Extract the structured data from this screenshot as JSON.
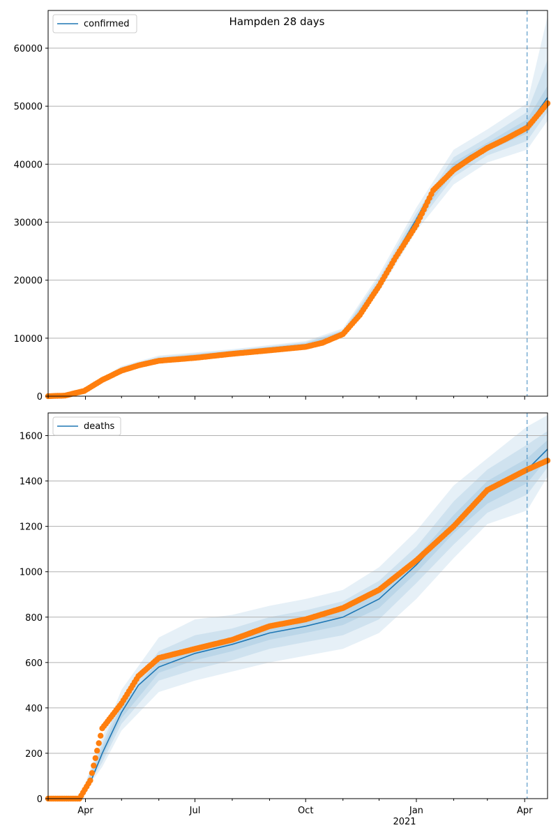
{
  "figure_title": "Hampden 28 days",
  "colors": {
    "model_line": "#1f77b4",
    "observed_points": "#ff7f0e",
    "band": "#1f77b4",
    "grid": "#b0b0b0",
    "forecast_marker": "#1f77b4"
  },
  "x_axis": {
    "tick_labels": [
      "Apr",
      "Jul",
      "Oct",
      "Jan",
      "Apr"
    ],
    "year_label": "2021"
  },
  "chart_data": [
    {
      "type": "line",
      "legend": "confirmed",
      "legend_position": "upper-left",
      "grid": "horizontal",
      "x_range": [
        "2020-03-01",
        "2021-04-20"
      ],
      "forecast_start": "2021-04-03",
      "ylim": [
        0,
        66500
      ],
      "yticks": [
        0,
        10000,
        20000,
        30000,
        40000,
        50000,
        60000
      ],
      "series": [
        {
          "name": "confirmed",
          "style": "model-line",
          "x": [
            "2020-03-01",
            "2020-03-15",
            "2020-03-31",
            "2020-04-15",
            "2020-05-01",
            "2020-05-15",
            "2020-06-01",
            "2020-07-01",
            "2020-08-01",
            "2020-09-01",
            "2020-10-01",
            "2020-10-15",
            "2020-11-01",
            "2020-11-15",
            "2020-12-01",
            "2020-12-15",
            "2021-01-01",
            "2021-01-15",
            "2021-02-01",
            "2021-02-15",
            "2021-03-01",
            "2021-03-15",
            "2021-04-03",
            "2021-04-20"
          ],
          "values": [
            0,
            100,
            1000,
            3000,
            4600,
            5600,
            6400,
            6900,
            7600,
            8300,
            8900,
            9500,
            11000,
            14500,
            19500,
            24500,
            30500,
            36000,
            39500,
            41500,
            43000,
            44500,
            46500,
            51500
          ]
        },
        {
          "name": "observed",
          "style": "points",
          "x": [
            "2020-03-01",
            "2020-03-15",
            "2020-03-31",
            "2020-04-15",
            "2020-05-01",
            "2020-05-15",
            "2020-06-01",
            "2020-07-01",
            "2020-08-01",
            "2020-09-01",
            "2020-10-01",
            "2020-10-15",
            "2020-11-01",
            "2020-11-15",
            "2020-12-01",
            "2020-12-15",
            "2021-01-01",
            "2021-01-15",
            "2021-02-01",
            "2021-02-15",
            "2021-03-01",
            "2021-03-15",
            "2021-04-03",
            "2021-04-20"
          ],
          "values": [
            0,
            100,
            900,
            2800,
            4400,
            5300,
            6100,
            6600,
            7300,
            7900,
            8500,
            9200,
            10700,
            14000,
            19000,
            24000,
            29500,
            35500,
            39000,
            41000,
            42800,
            44200,
            46300,
            50500
          ]
        }
      ],
      "bands": [
        {
          "x": [
            "2020-03-01",
            "2020-03-31",
            "2020-05-01",
            "2020-06-01",
            "2020-08-01",
            "2020-10-01",
            "2020-11-01",
            "2020-12-01",
            "2021-01-01",
            "2021-02-01",
            "2021-03-01",
            "2021-04-03",
            "2021-04-20"
          ],
          "low": [
            0,
            700,
            3900,
            5800,
            7100,
            8300,
            10300,
            18000,
            28500,
            36500,
            40300,
            42500,
            47500
          ],
          "high": [
            0,
            1300,
            5200,
            7000,
            8100,
            9500,
            11700,
            21000,
            32500,
            42500,
            46000,
            50500,
            65500
          ]
        },
        {
          "x": [
            "2020-03-01",
            "2020-03-31",
            "2020-05-01",
            "2020-06-01",
            "2020-08-01",
            "2020-10-01",
            "2020-11-01",
            "2020-12-01",
            "2021-01-01",
            "2021-02-01",
            "2021-03-01",
            "2021-04-03",
            "2021-04-20"
          ],
          "low": [
            0,
            800,
            4200,
            6000,
            7300,
            8500,
            10600,
            18700,
            29400,
            37800,
            41500,
            44000,
            49000
          ],
          "high": [
            0,
            1200,
            5000,
            6800,
            7900,
            9300,
            11400,
            20400,
            31600,
            41200,
            44600,
            49000,
            58000
          ]
        },
        {
          "x": [
            "2020-03-01",
            "2020-03-31",
            "2020-05-01",
            "2020-06-01",
            "2020-08-01",
            "2020-10-01",
            "2020-11-01",
            "2020-12-01",
            "2021-01-01",
            "2021-02-01",
            "2021-03-01",
            "2021-04-03",
            "2021-04-20"
          ],
          "low": [
            0,
            900,
            4400,
            6200,
            7400,
            8700,
            10800,
            19200,
            30000,
            38700,
            42300,
            45300,
            50000
          ],
          "high": [
            0,
            1100,
            4800,
            6600,
            7800,
            9100,
            11200,
            19800,
            31000,
            40300,
            43700,
            47700,
            53500
          ]
        }
      ]
    },
    {
      "type": "line",
      "legend": "deaths",
      "legend_position": "upper-left",
      "grid": "horizontal",
      "x_range": [
        "2020-03-01",
        "2021-04-20"
      ],
      "forecast_start": "2021-04-03",
      "ylim": [
        0,
        1700
      ],
      "yticks": [
        0,
        200,
        400,
        600,
        800,
        1000,
        1200,
        1400,
        1600
      ],
      "series": [
        {
          "name": "deaths",
          "style": "model-line",
          "x": [
            "2020-03-01",
            "2020-03-27",
            "2020-04-05",
            "2020-04-15",
            "2020-05-01",
            "2020-05-15",
            "2020-06-01",
            "2020-07-01",
            "2020-08-01",
            "2020-09-01",
            "2020-10-01",
            "2020-11-01",
            "2020-12-01",
            "2021-01-01",
            "2021-02-01",
            "2021-03-01",
            "2021-04-03",
            "2021-04-20"
          ],
          "values": [
            0,
            0,
            70,
            200,
            380,
            500,
            580,
            640,
            680,
            730,
            760,
            800,
            880,
            1030,
            1210,
            1350,
            1450,
            1540
          ]
        },
        {
          "name": "observed",
          "style": "points",
          "x": [
            "2020-03-01",
            "2020-03-27",
            "2020-04-05",
            "2020-04-15",
            "2020-05-01",
            "2020-05-15",
            "2020-06-01",
            "2020-07-01",
            "2020-08-01",
            "2020-09-01",
            "2020-10-01",
            "2020-11-01",
            "2020-12-01",
            "2021-01-01",
            "2021-02-01",
            "2021-03-01",
            "2021-04-03",
            "2021-04-20"
          ],
          "values": [
            0,
            0,
            80,
            310,
            420,
            540,
            620,
            660,
            700,
            760,
            790,
            840,
            920,
            1050,
            1200,
            1360,
            1450,
            1490
          ]
        }
      ],
      "bands": [
        {
          "x": [
            "2020-03-01",
            "2020-03-27",
            "2020-04-15",
            "2020-05-01",
            "2020-06-01",
            "2020-07-01",
            "2020-08-01",
            "2020-09-01",
            "2020-10-01",
            "2020-11-01",
            "2020-12-01",
            "2021-01-01",
            "2021-02-01",
            "2021-03-01",
            "2021-04-03",
            "2021-04-20"
          ],
          "low": [
            0,
            0,
            140,
            300,
            470,
            520,
            560,
            600,
            630,
            660,
            730,
            880,
            1060,
            1210,
            1270,
            1420
          ],
          "high": [
            0,
            0,
            270,
            480,
            710,
            790,
            810,
            850,
            880,
            920,
            1020,
            1180,
            1380,
            1500,
            1640,
            1690
          ]
        },
        {
          "x": [
            "2020-03-01",
            "2020-03-27",
            "2020-04-15",
            "2020-05-01",
            "2020-06-01",
            "2020-07-01",
            "2020-08-01",
            "2020-09-01",
            "2020-10-01",
            "2020-11-01",
            "2020-12-01",
            "2021-01-01",
            "2021-02-01",
            "2021-03-01",
            "2021-04-03",
            "2021-04-20"
          ],
          "low": [
            0,
            0,
            160,
            330,
            520,
            570,
            610,
            660,
            690,
            720,
            790,
            950,
            1120,
            1260,
            1340,
            1460
          ],
          "high": [
            0,
            0,
            245,
            440,
            650,
            720,
            750,
            800,
            830,
            870,
            960,
            1110,
            1310,
            1450,
            1560,
            1620
          ]
        },
        {
          "x": [
            "2020-03-01",
            "2020-03-27",
            "2020-04-15",
            "2020-05-01",
            "2020-06-01",
            "2020-07-01",
            "2020-08-01",
            "2020-09-01",
            "2020-10-01",
            "2020-11-01",
            "2020-12-01",
            "2021-01-01",
            "2021-02-01",
            "2021-03-01",
            "2021-04-03",
            "2021-04-20"
          ],
          "low": [
            0,
            0,
            180,
            355,
            555,
            610,
            650,
            700,
            730,
            765,
            840,
            995,
            1170,
            1300,
            1390,
            1500
          ],
          "high": [
            0,
            0,
            225,
            410,
            610,
            670,
            710,
            760,
            790,
            830,
            920,
            1065,
            1250,
            1400,
            1500,
            1580
          ]
        }
      ]
    }
  ]
}
